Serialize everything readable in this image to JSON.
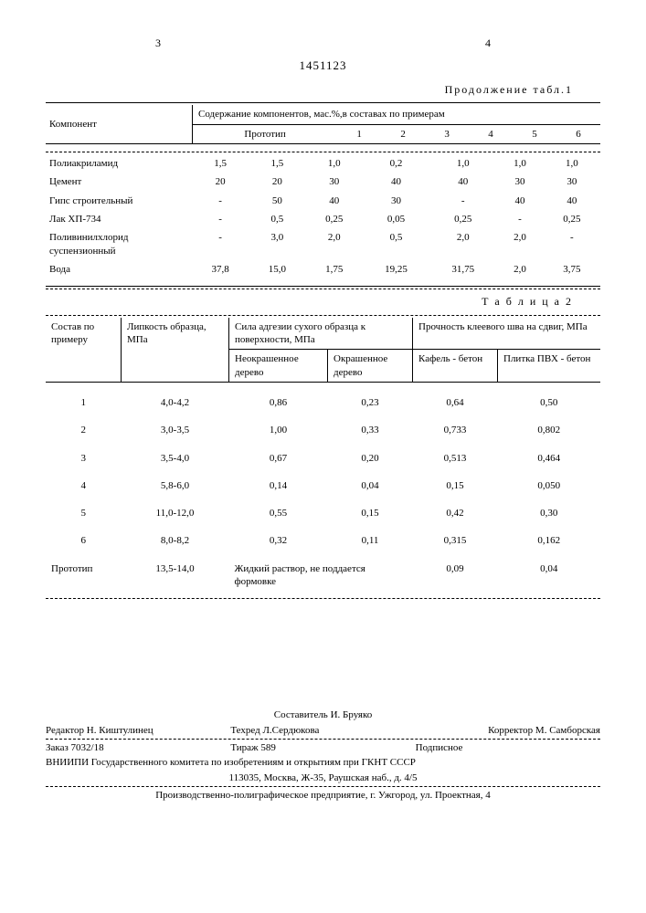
{
  "header": {
    "page_left": "3",
    "page_right": "4",
    "doc_number": "1451123"
  },
  "table1": {
    "caption": "Продолжение табл.1",
    "col_component": "Компонент",
    "col_content": "Содержание компонентов, мас.%,в составах по примерам",
    "subcols": [
      "Прототип",
      "1",
      "2",
      "3",
      "4",
      "5",
      "6"
    ],
    "rows": [
      {
        "name": "Полиакриламид",
        "v": [
          "1,5",
          "1,5",
          "1,0",
          "0,2",
          "1,0",
          "1,0",
          "1,0"
        ]
      },
      {
        "name": "Цемент",
        "v": [
          "20",
          "20",
          "30",
          "40",
          "40",
          "30",
          "30"
        ]
      },
      {
        "name": "Гипс строительный",
        "v": [
          "-",
          "50",
          "40",
          "30",
          "-",
          "40",
          "40"
        ]
      },
      {
        "name": "Лак ХП-734",
        "v": [
          "-",
          "0,5",
          "0,25",
          "0,05",
          "0,25",
          "-",
          "0,25"
        ]
      },
      {
        "name": "Поливинилхлорид суспензионный",
        "v": [
          "-",
          "3,0",
          "2,0",
          "0,5",
          "2,0",
          "2,0",
          "-"
        ]
      },
      {
        "name": "Вода",
        "v": [
          "37,8",
          "15,0",
          "1,75",
          "19,25",
          "31,75",
          "2,0",
          "3,75"
        ]
      }
    ]
  },
  "table2": {
    "caption": "Т а б л и ц а  2",
    "col_sostav": "Состав по примеру",
    "col_lipkost": "Липкость образца, МПа",
    "col_adgez": "Сила адгезии сухого образца к поверхности, МПа",
    "col_prochnost": "Прочность клеевого шва на сдвиг,   МПа",
    "sub_a1": "Неокрашенное дерево",
    "sub_a2": "Окрашенное дерево",
    "sub_p1": "Кафель - бетон",
    "sub_p2": "Плитка ПВХ - бетон",
    "rows": [
      {
        "n": "1",
        "l": "4,0-4,2",
        "a1": "0,86",
        "a2": "0,23",
        "p1": "0,64",
        "p2": "0,50"
      },
      {
        "n": "2",
        "l": "3,0-3,5",
        "a1": "1,00",
        "a2": "0,33",
        "p1": "0,733",
        "p2": "0,802"
      },
      {
        "n": "3",
        "l": "3,5-4,0",
        "a1": "0,67",
        "a2": "0,20",
        "p1": "0,513",
        "p2": "0,464"
      },
      {
        "n": "4",
        "l": "5,8-6,0",
        "a1": "0,14",
        "a2": "0,04",
        "p1": "0,15",
        "p2": "0,050"
      },
      {
        "n": "5",
        "l": "11,0-12,0",
        "a1": "0,55",
        "a2": "0,15",
        "p1": "0,42",
        "p2": "0,30"
      },
      {
        "n": "6",
        "l": "8,0-8,2",
        "a1": "0,32",
        "a2": "0,11",
        "p1": "0,315",
        "p2": "0,162"
      }
    ],
    "proto_label": "Прототип",
    "proto_l": "13,5-14,0",
    "proto_note": "Жидкий раствор, не поддается формовке",
    "proto_p1": "0,09",
    "proto_p2": "0,04"
  },
  "footer": {
    "sostavitel": "Составитель И. Бруяко",
    "redaktor": "Редактор Н. Киштулинец",
    "tehred": "Техред Л.Сердюкова",
    "korrektor": "Корректор М. Самборская",
    "zakaz": "Заказ 7032/18",
    "tirazh": "Тираж  589",
    "podpisnoe": "Подписное",
    "vniipi": "ВНИИПИ Государственного комитета по изобретениям и открытиям при ГКНТ СССР",
    "addr": "113035, Москва, Ж-35, Раушская наб., д. 4/5",
    "proizv": "Производственно-полиграфическое предприятие, г. Ужгород, ул. Проектная, 4"
  }
}
